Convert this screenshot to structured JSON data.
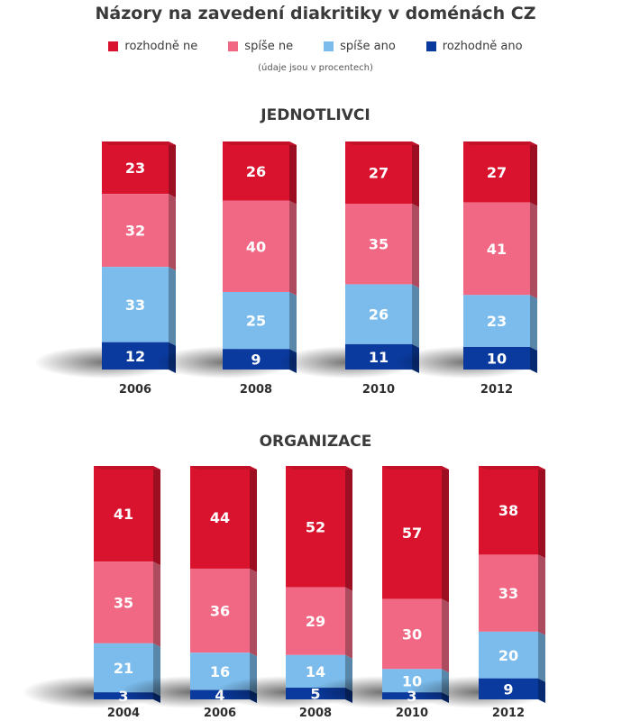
{
  "title": "Názory na zavedení diakritiky v doménách CZ",
  "legend": [
    {
      "label": "rozhodně ne",
      "color": "#d9132e"
    },
    {
      "label": "spíše ne",
      "color": "#f06884"
    },
    {
      "label": "spíše ano",
      "color": "#7cbcec"
    },
    {
      "label": "rozhodně ano",
      "color": "#0a3a9e"
    }
  ],
  "note": "(údaje jsou v procentech)",
  "chart_data": [
    {
      "type": "bar",
      "stacked": true,
      "title": "JEDNOTLIVCI",
      "categories": [
        "2006",
        "2008",
        "2010",
        "2012"
      ],
      "series": [
        {
          "name": "rozhodně ne",
          "values": [
            23,
            26,
            27,
            27
          ]
        },
        {
          "name": "spíše ne",
          "values": [
            32,
            40,
            35,
            41
          ]
        },
        {
          "name": "spíše ano",
          "values": [
            33,
            25,
            26,
            23
          ]
        },
        {
          "name": "rozhodně ano",
          "values": [
            12,
            9,
            11,
            10
          ]
        }
      ]
    },
    {
      "type": "bar",
      "stacked": true,
      "title": "ORGANIZACE",
      "categories": [
        "2004",
        "2006",
        "2008",
        "2010",
        "2012"
      ],
      "series": [
        {
          "name": "rozhodně ne",
          "values": [
            41,
            44,
            52,
            57,
            38
          ]
        },
        {
          "name": "spíše ne",
          "values": [
            35,
            36,
            29,
            30,
            33
          ]
        },
        {
          "name": "spíše ano",
          "values": [
            21,
            16,
            14,
            10,
            20
          ]
        },
        {
          "name": "rozhodně ano",
          "values": [
            3,
            4,
            5,
            3,
            9
          ]
        }
      ]
    }
  ]
}
